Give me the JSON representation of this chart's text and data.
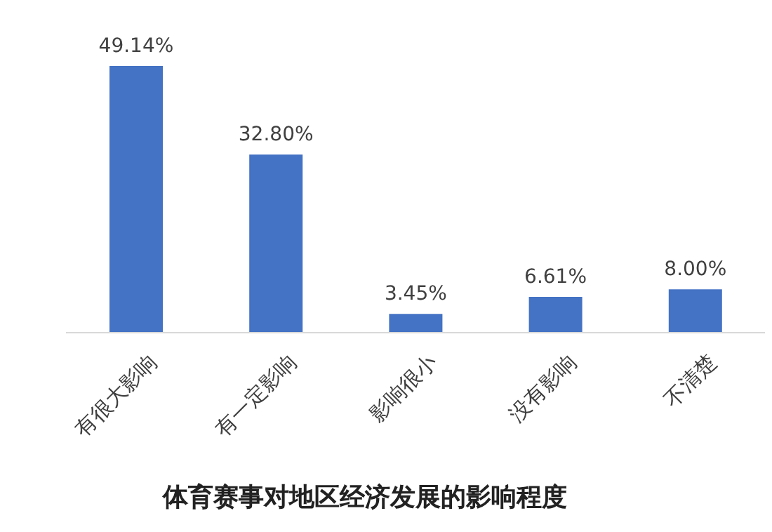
{
  "chart_data": {
    "type": "bar",
    "title": "体育赛事对地区经济发展的影响程度",
    "categories": [
      "有很大影响",
      "有一定影响",
      "影响很小",
      "没有影响",
      "不清楚"
    ],
    "values": [
      49.14,
      32.8,
      3.45,
      6.61,
      8.0
    ],
    "value_labels": [
      "49.14%",
      "32.80%",
      "3.45%",
      "6.61%",
      "8.00%"
    ],
    "color": "#4472c4"
  }
}
